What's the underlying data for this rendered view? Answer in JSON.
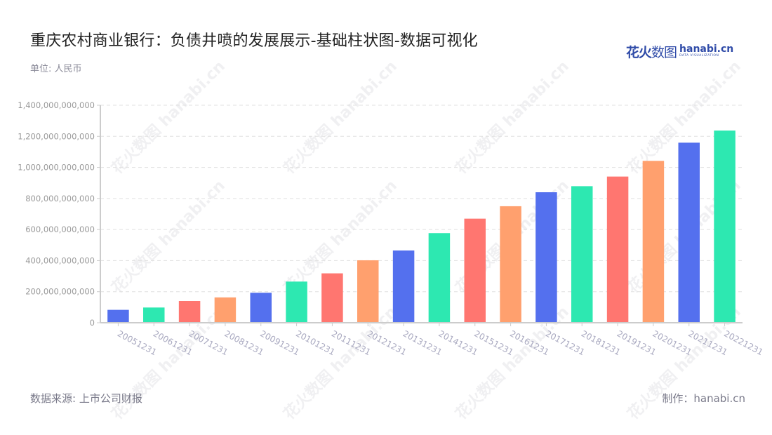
{
  "header": {
    "title": "重庆农村商业银行：负债井喷的发展展示-基础柱状图-数据可视化",
    "unit": "单位: 人民币"
  },
  "logo": {
    "cn_bold": "花火",
    "cn_thin": "数图",
    "en": "hanabi.cn",
    "en_sub": "DATA VISUALIZATION"
  },
  "footer": {
    "source": "数据来源: 上市公司财报",
    "credit": "制作：hanabi.cn"
  },
  "watermark_text": "花火数图 hanabi.cn",
  "colors": {
    "palette": [
      "#5470ee",
      "#2de8b1",
      "#ff7670",
      "#ffa06e"
    ],
    "axis": "#cccccc",
    "grid": "#e0e0e0",
    "tick_label": "#999999",
    "x_label": "#a9a9c0"
  },
  "chart_data": {
    "type": "bar",
    "title": "重庆农村商业银行：负债井喷的发展展示-基础柱状图-数据可视化",
    "xlabel": "",
    "ylabel": "单位: 人民币",
    "ylim": [
      0,
      1400000000000
    ],
    "yticks": [
      0,
      200000000000,
      400000000000,
      600000000000,
      800000000000,
      1000000000000,
      1200000000000,
      1400000000000
    ],
    "ytick_labels": [
      "0",
      "200,000,000,000",
      "400,000,000,000",
      "600,000,000,000",
      "800,000,000,000",
      "1,000,000,000,000",
      "1,200,000,000,000",
      "1,400,000,000,000"
    ],
    "grid": true,
    "legend": "none",
    "categories": [
      "20051231",
      "20061231",
      "20071231",
      "20081231",
      "20091231",
      "20101231",
      "20111231",
      "20121231",
      "20131231",
      "20141231",
      "20151231",
      "20161231",
      "20171231",
      "20181231",
      "20191231",
      "20201231",
      "20211231",
      "20221231"
    ],
    "values": [
      83000000000,
      98000000000,
      140000000000,
      163000000000,
      193000000000,
      265000000000,
      318000000000,
      402000000000,
      465000000000,
      577000000000,
      670000000000,
      750000000000,
      840000000000,
      879000000000,
      941000000000,
      1042000000000,
      1159000000000,
      1237000000000
    ],
    "bar_colors": [
      "#5470ee",
      "#2de8b1",
      "#ff7670",
      "#ffa06e",
      "#5470ee",
      "#2de8b1",
      "#ff7670",
      "#ffa06e",
      "#5470ee",
      "#2de8b1",
      "#ff7670",
      "#ffa06e",
      "#5470ee",
      "#2de8b1",
      "#ff7670",
      "#ffa06e",
      "#5470ee",
      "#2de8b1"
    ]
  }
}
